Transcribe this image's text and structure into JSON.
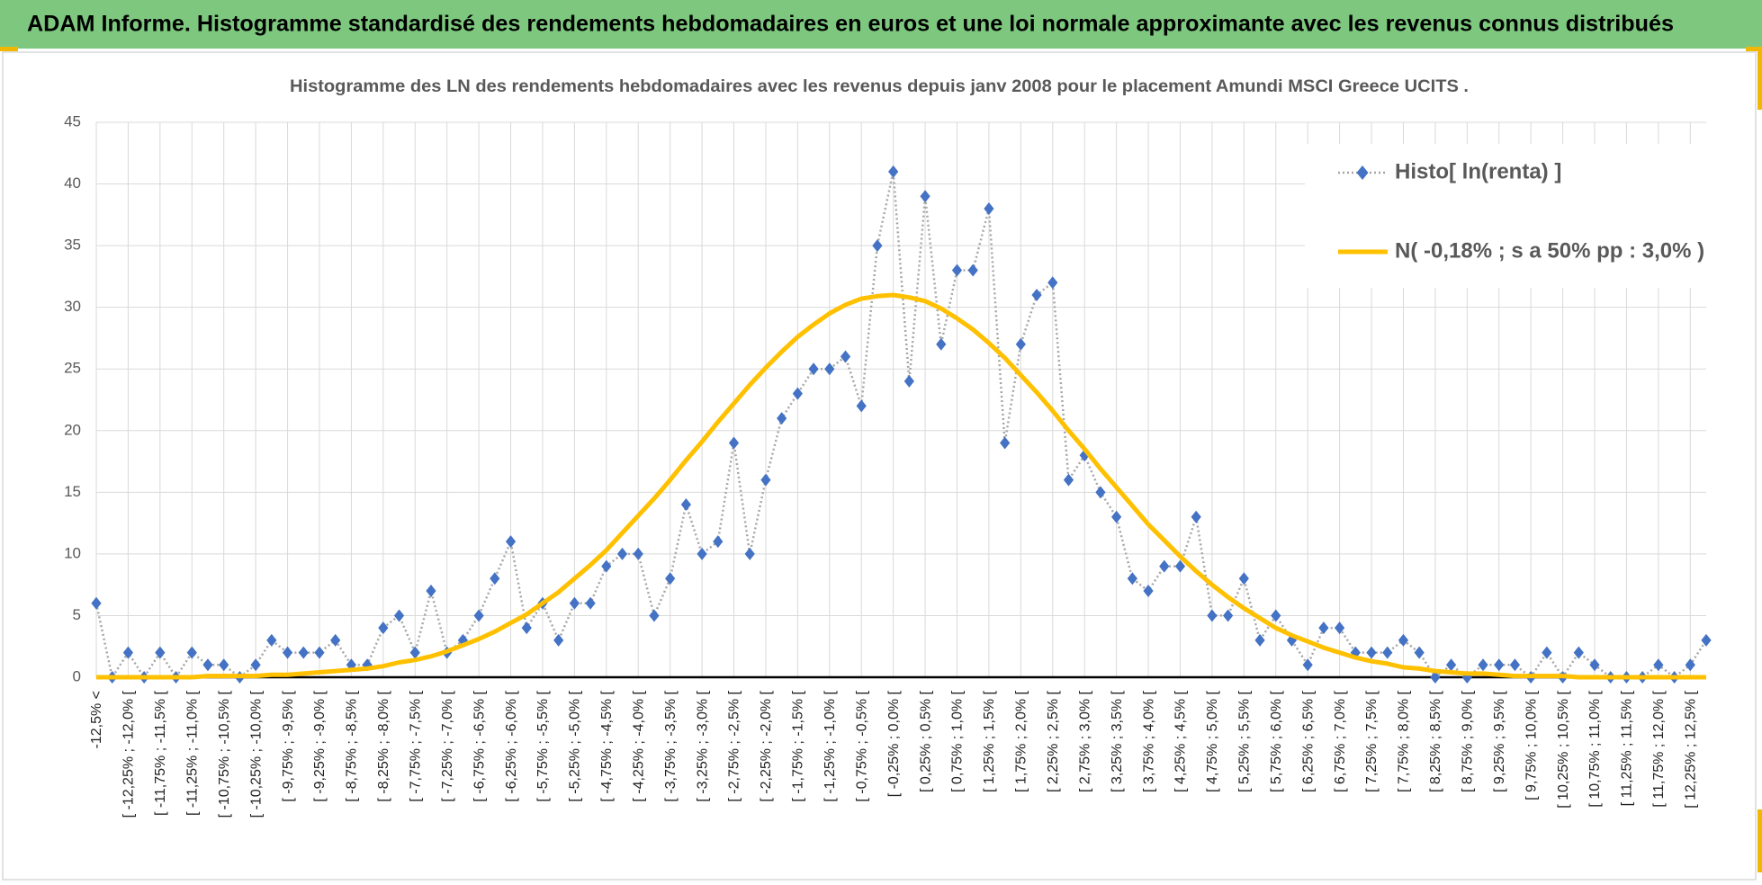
{
  "header": {
    "title": "ADAM Informe. Histogramme standardisé des rendements hebdomadaires en euros et une loi normale approximante avec les revenus connus distribués"
  },
  "chart_data": {
    "type": "line",
    "title": "Histogramme des LN des rendements hebdomadaires avec les revenus depuis janv 2008 pour le placement Amundi MSCI Greece UCITS .",
    "categories": [
      "-12,5% <",
      null,
      "[ -12,25% ; -12,0% [",
      null,
      "[ -11,75% ; -11,5% [",
      null,
      "[ -11,25% ; -11,0% [",
      null,
      "[ -10,75% ; -10,5% [",
      null,
      "[ -10,25% ; -10,0% [",
      null,
      "[ -9,75% ; -9,5% [",
      null,
      "[ -9,25% ; -9,0% [",
      null,
      "[ -8,75% ; -8,5% [",
      null,
      "[ -8,25% ; -8,0% [",
      null,
      "[ -7,75% ; -7,5% [",
      null,
      "[ -7,25% ; -7,0% [",
      null,
      "[ -6,75% ; -6,5% [",
      null,
      "[ -6,25% ; -6,0% [",
      null,
      "[ -5,75% ; -5,5% [",
      null,
      "[ -5,25% ; -5,0% [",
      null,
      "[ -4,75% ; -4,5% [",
      null,
      "[ -4,25% ; -4,0% [",
      null,
      "[ -3,75% ; -3,5% [",
      null,
      "[ -3,25% ; -3,0% [",
      null,
      "[ -2,75% ; -2,5% [",
      null,
      "[ -2,25% ; -2,0% [",
      null,
      "[ -1,75% ; -1,5% [",
      null,
      "[ -1,25% ; -1,0% [",
      null,
      "[ -0,75% ; -0,5% [",
      null,
      "[ -0,25% ; 0,0% [",
      null,
      "[ 0,25% ; 0,5% [",
      null,
      "[ 0,75% ; 1,0% [",
      null,
      "[ 1,25% ; 1,5% [",
      null,
      "[ 1,75% ; 2,0% [",
      null,
      "[ 2,25% ; 2,5% [",
      null,
      "[ 2,75% ; 3,0% [",
      null,
      "[ 3,25% ; 3,5% [",
      null,
      "[ 3,75% ; 4,0% [",
      null,
      "[ 4,25% ; 4,5% [",
      null,
      "[ 4,75% ; 5,0% [",
      null,
      "[ 5,25% ; 5,5% [",
      null,
      "[ 5,75% ; 6,0% [",
      null,
      "[ 6,25% ; 6,5% [",
      null,
      "[ 6,75% ; 7,0% [",
      null,
      "[ 7,25% ; 7,5% [",
      null,
      "[ 7,75% ; 8,0% [",
      null,
      "[ 8,25% ; 8,5% [",
      null,
      "[ 8,75% ; 9,0% [",
      null,
      "[ 9,25% ; 9,5% [",
      null,
      "[ 9,75% ; 10,0% [",
      null,
      "[ 10,25% ; 10,5% [",
      null,
      "[ 10,75% ; 11,0% [",
      null,
      "[ 11,25% ; 11,5% [",
      null,
      "[ 11,75% ; 12,0% [",
      null,
      "[ 12,25% ; 12,5% [",
      null
    ],
    "series": [
      {
        "name": "Histo[ ln(renta) ]",
        "color": "#4472c4",
        "line_color": "#a6a6a6",
        "values": [
          6,
          0,
          2,
          0,
          2,
          0,
          2,
          1,
          1,
          0,
          1,
          3,
          2,
          2,
          2,
          3,
          1,
          1,
          4,
          5,
          2,
          7,
          2,
          3,
          5,
          8,
          11,
          4,
          6,
          3,
          6,
          6,
          9,
          10,
          10,
          5,
          8,
          14,
          10,
          11,
          19,
          10,
          16,
          21,
          23,
          25,
          25,
          26,
          22,
          35,
          41,
          24,
          39,
          27,
          33,
          33,
          38,
          19,
          27,
          31,
          32,
          16,
          18,
          15,
          13,
          8,
          7,
          9,
          9,
          13,
          5,
          5,
          8,
          3,
          5,
          3,
          1,
          4,
          4,
          2,
          2,
          2,
          3,
          2,
          0,
          1,
          0,
          1,
          1,
          1,
          0,
          2,
          0,
          2,
          1,
          0,
          0,
          0,
          1,
          0,
          1,
          3
        ]
      },
      {
        "name": "N( -0,18% ; s a 50% pp : 3,0% )",
        "color": "#ffc000",
        "values": [
          0,
          0,
          0,
          0,
          0,
          0,
          0,
          0.1,
          0.1,
          0.1,
          0.1,
          0.2,
          0.2,
          0.3,
          0.4,
          0.5,
          0.6,
          0.7,
          0.9,
          1.2,
          1.4,
          1.7,
          2.1,
          2.6,
          3.1,
          3.7,
          4.4,
          5.1,
          6.0,
          6.9,
          8.0,
          9.1,
          10.3,
          11.7,
          13.1,
          14.5,
          16.0,
          17.6,
          19.1,
          20.7,
          22.2,
          23.7,
          25.1,
          26.4,
          27.6,
          28.6,
          29.5,
          30.2,
          30.7,
          30.9,
          31.0,
          30.8,
          30.5,
          29.9,
          29.1,
          28.2,
          27.1,
          25.9,
          24.5,
          23.1,
          21.6,
          20.0,
          18.5,
          16.9,
          15.4,
          13.9,
          12.4,
          11.1,
          9.8,
          8.6,
          7.5,
          6.5,
          5.6,
          4.8,
          4.0,
          3.4,
          2.9,
          2.4,
          2.0,
          1.6,
          1.3,
          1.1,
          0.8,
          0.7,
          0.5,
          0.4,
          0.3,
          0.3,
          0.2,
          0.1,
          0.1,
          0.1,
          0.1,
          0,
          0,
          0,
          0,
          0,
          0,
          0,
          0,
          0
        ]
      }
    ],
    "ylim": [
      0,
      45
    ],
    "yticks": [
      0,
      5,
      10,
      15,
      20,
      25,
      30,
      35,
      40,
      45
    ],
    "grid": true,
    "legend": "upper right"
  }
}
